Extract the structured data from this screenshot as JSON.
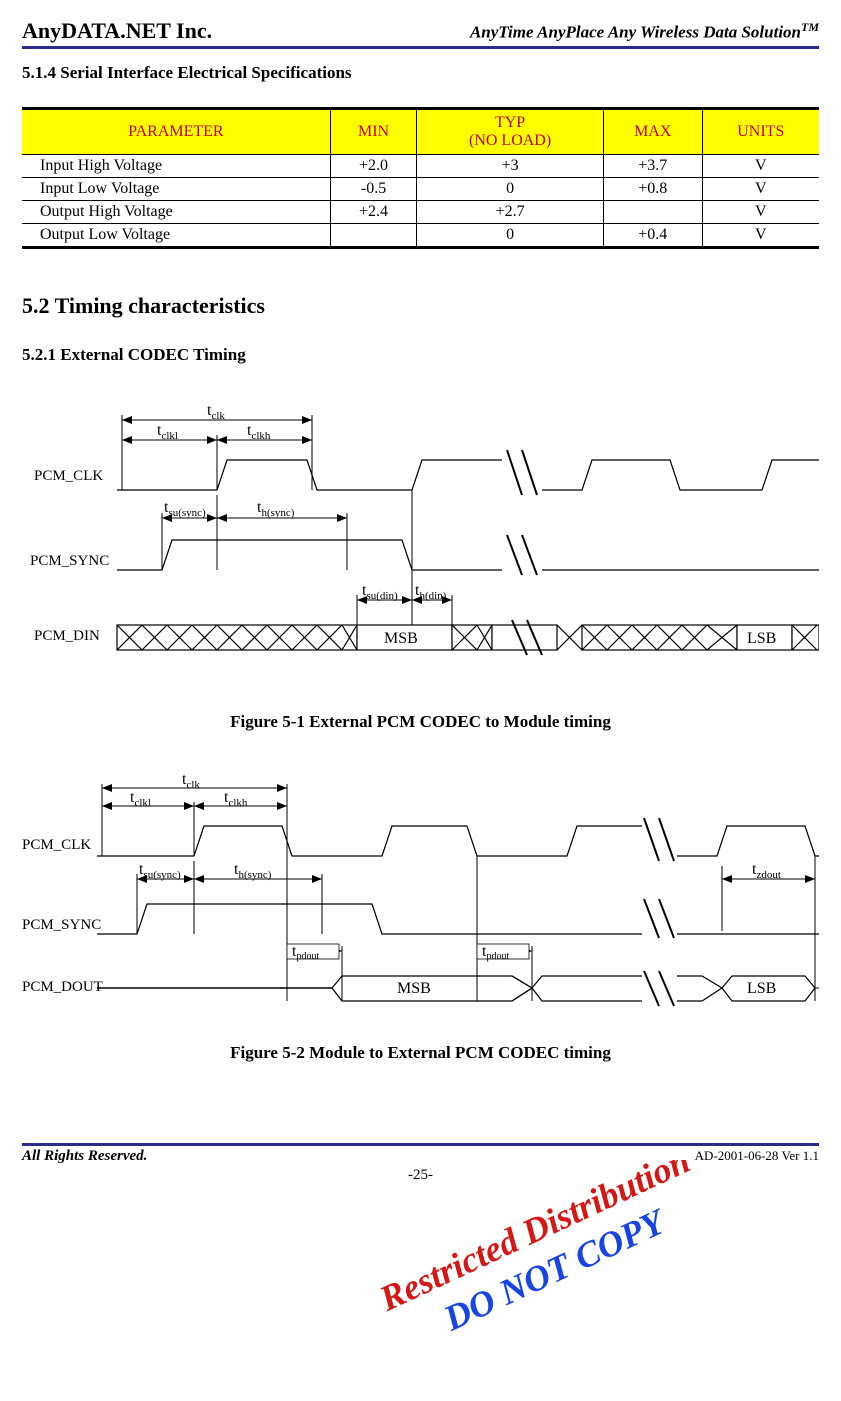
{
  "header": {
    "left": "AnyDATA.NET Inc.",
    "right": "AnyTime AnyPlace Any Wireless Data Solution",
    "right_sup": "TM"
  },
  "sec514": "5.1.4 Serial Interface Electrical Specifications",
  "table": {
    "head": [
      "PARAMETER",
      "MIN",
      "TYP\n(NO LOAD)",
      "MAX",
      "UNITS"
    ],
    "rows": [
      [
        "Input High Voltage",
        "+2.0",
        "+3",
        "+3.7",
        "V"
      ],
      [
        "Input Low Voltage",
        "-0.5",
        "0",
        "+0.8",
        "V"
      ],
      [
        "Output High Voltage",
        "+2.4",
        "+2.7",
        "",
        "V"
      ],
      [
        "Output Low Voltage",
        "",
        "0",
        "+0.4",
        "V"
      ]
    ]
  },
  "sec52": "5.2 Timing characteristics",
  "sec521": "5.2.1 External CODEC Timing",
  "fig1": {
    "sig_clk": "PCM_CLK",
    "sig_sync": "PCM_SYNC",
    "sig_din": "PCM_DIN",
    "t_clk": "t",
    "t_clk_sub": "clk",
    "t_clkl": "t",
    "t_clkl_sub": "clkl",
    "t_clkh": "t",
    "t_clkh_sub": "clkh",
    "t_susync": "t",
    "t_susync_sub": "su(sync)",
    "t_hsync": "t",
    "t_hsync_sub": "h(sync)",
    "t_sudin": "t",
    "t_sudin_sub": "su(din)",
    "t_hdin": "t",
    "t_hdin_sub": "h(din)",
    "msb": "MSB",
    "lsb": "LSB",
    "caption": "Figure 5-1 External PCM CODEC to Module timing"
  },
  "fig2": {
    "sig_clk": "PCM_CLK",
    "sig_sync": "PCM_SYNC",
    "sig_dout": "PCM_DOUT",
    "t_clk": "t",
    "t_clk_sub": "clk",
    "t_clkl": "t",
    "t_clkl_sub": "clkl",
    "t_clkh": "t",
    "t_clkh_sub": "clkh",
    "t_susync": "t",
    "t_susync_sub": "su(sync)",
    "t_hsync": "t",
    "t_hsync_sub": "h(sync)",
    "t_pdout": "t",
    "t_pdout_sub": "pdout",
    "t_zdout": "t",
    "t_zdout_sub": "zdout",
    "msb": "MSB",
    "lsb": "LSB",
    "caption": "Figure 5-2 Module to External PCM CODEC timing"
  },
  "watermark": {
    "l1": "Restricted Distribution",
    "l2": "DO NOT COPY"
  },
  "footer": {
    "left": "All Rights Reserved.",
    "right": "AD-2001-06-28 Ver 1.1",
    "page": "-25-"
  }
}
